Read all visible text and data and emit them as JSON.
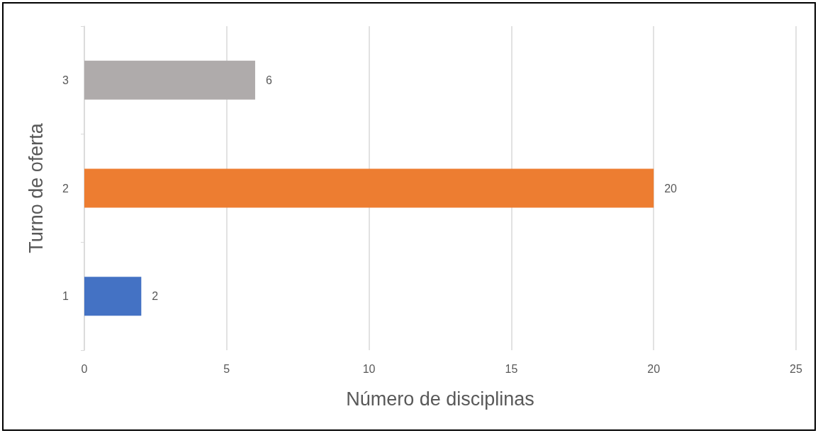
{
  "chart_data": {
    "type": "bar",
    "orientation": "horizontal",
    "categories": [
      "3",
      "2",
      "1"
    ],
    "values": [
      6,
      20,
      2
    ],
    "colors": [
      "#afabab",
      "#ed7d31",
      "#4472c4"
    ],
    "xlabel": "Número de disciplinas",
    "ylabel": "Turno de oferta",
    "xlim": [
      0,
      25
    ],
    "xticks": [
      0,
      5,
      10,
      15,
      20,
      25
    ],
    "grid": "x",
    "data_labels": true
  }
}
